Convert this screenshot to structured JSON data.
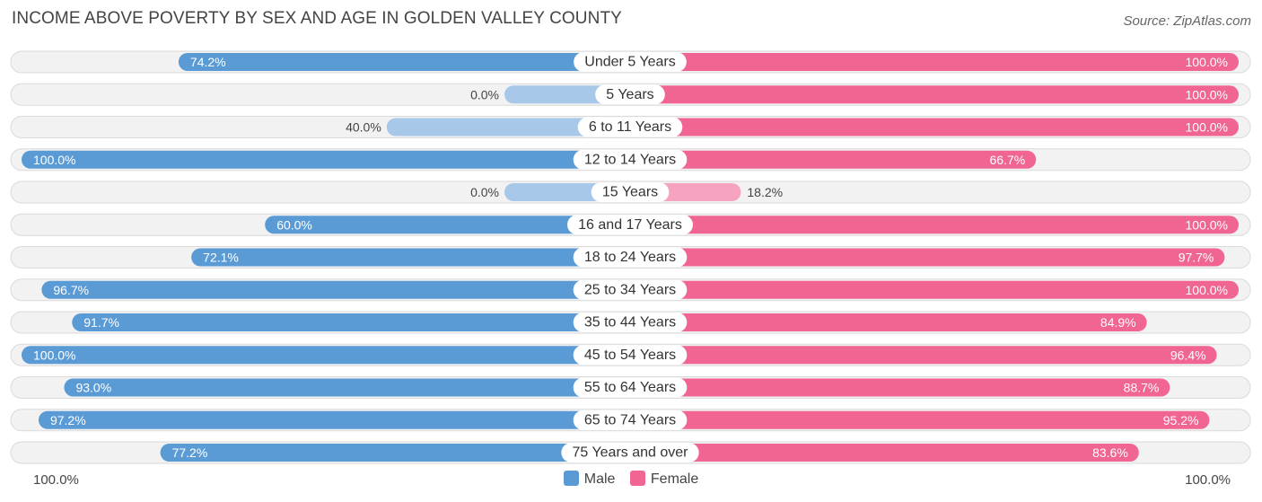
{
  "chart_data": {
    "type": "bar",
    "orientation": "horizontal-diverging",
    "title": "INCOME ABOVE POVERTY BY SEX AND AGE IN GOLDEN VALLEY COUNTY",
    "source": "Source: ZipAtlas.com",
    "categories": [
      "Under 5 Years",
      "5 Years",
      "6 to 11 Years",
      "12 to 14 Years",
      "15 Years",
      "16 and 17 Years",
      "18 to 24 Years",
      "25 to 34 Years",
      "35 to 44 Years",
      "45 to 54 Years",
      "55 to 64 Years",
      "65 to 74 Years",
      "75 Years and over"
    ],
    "series": [
      {
        "name": "Male",
        "values": [
          74.2,
          0.0,
          40.0,
          100.0,
          0.0,
          60.0,
          72.1,
          96.7,
          91.7,
          100.0,
          93.0,
          97.2,
          77.2
        ],
        "labels": [
          "74.2%",
          "0.0%",
          "40.0%",
          "100.0%",
          "0.0%",
          "60.0%",
          "72.1%",
          "96.7%",
          "91.7%",
          "100.0%",
          "93.0%",
          "97.2%",
          "77.2%"
        ]
      },
      {
        "name": "Female",
        "values": [
          100.0,
          100.0,
          100.0,
          66.7,
          18.2,
          100.0,
          97.7,
          100.0,
          84.9,
          96.4,
          88.7,
          95.2,
          83.6
        ],
        "labels": [
          "100.0%",
          "100.0%",
          "100.0%",
          "66.7%",
          "18.2%",
          "100.0%",
          "97.7%",
          "100.0%",
          "84.9%",
          "96.4%",
          "88.7%",
          "95.2%",
          "83.6%"
        ]
      }
    ],
    "axis_left_label": "100.0%",
    "axis_right_label": "100.0%",
    "xlim": [
      0,
      100
    ],
    "legend": [
      "Male",
      "Female"
    ],
    "legend_position": "bottom-center"
  },
  "colors": {
    "male": "#5b9bd5",
    "male_light": "#a8c8ea",
    "female": "#f06592",
    "female_light": "#f5a3c0"
  }
}
